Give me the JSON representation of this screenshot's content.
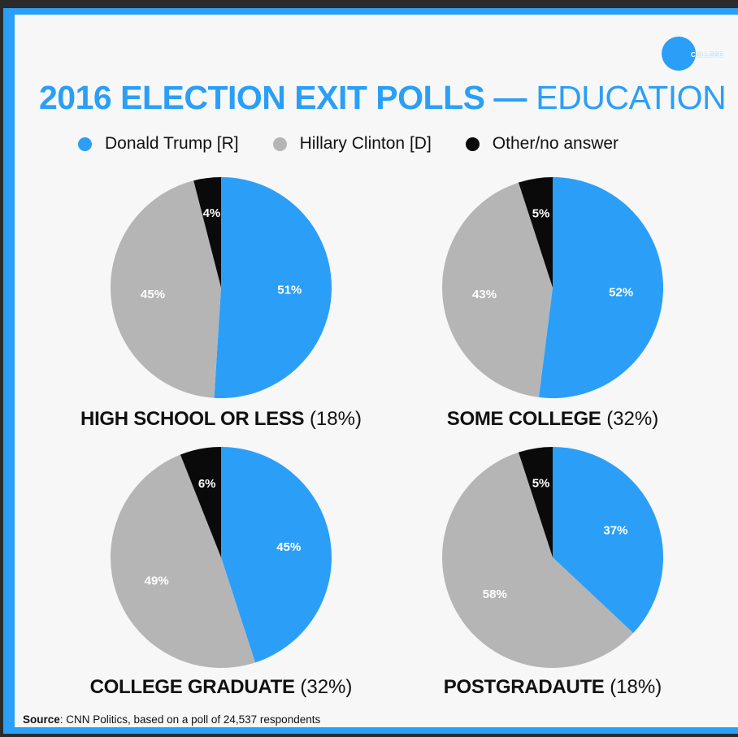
{
  "logo": {
    "text": "COLLEGE",
    "color": "#2b9ff7"
  },
  "header": {
    "title_main": "2016 ELECTION EXIT POLLS —",
    "title_sub": "EDUCATION"
  },
  "legend": [
    {
      "label": "Donald Trump  [R]",
      "color": "#2b9ff7"
    },
    {
      "label": "Hillary Clinton [D]",
      "color": "#b5b5b5"
    },
    {
      "label": "Other/no answer",
      "color": "#0a0a0a"
    }
  ],
  "footer": {
    "source_label": "Source",
    "source_text": ": CNN Politics, based on a poll of 24,537 respondents"
  },
  "chart_data": [
    {
      "type": "pie",
      "label": "HIGH SCHOOL OR LESS",
      "share": "(18%)",
      "slices": [
        {
          "name": "Donald Trump [R]",
          "value": 51,
          "label": "51%",
          "color": "#2b9ff7"
        },
        {
          "name": "Hillary Clinton [D]",
          "value": 45,
          "label": "45%",
          "color": "#b5b5b5"
        },
        {
          "name": "Other/no answer",
          "value": 4,
          "label": "4%",
          "color": "#0a0a0a"
        }
      ]
    },
    {
      "type": "pie",
      "label": "SOME COLLEGE",
      "share": "(32%)",
      "slices": [
        {
          "name": "Donald Trump [R]",
          "value": 52,
          "label": "52%",
          "color": "#2b9ff7"
        },
        {
          "name": "Hillary Clinton [D]",
          "value": 43,
          "label": "43%",
          "color": "#b5b5b5"
        },
        {
          "name": "Other/no answer",
          "value": 5,
          "label": "5%",
          "color": "#0a0a0a"
        }
      ]
    },
    {
      "type": "pie",
      "label": "COLLEGE GRADUATE",
      "share": "(32%)",
      "slices": [
        {
          "name": "Donald Trump [R]",
          "value": 45,
          "label": "45%",
          "color": "#2b9ff7"
        },
        {
          "name": "Hillary Clinton [D]",
          "value": 49,
          "label": "49%",
          "color": "#b5b5b5"
        },
        {
          "name": "Other/no answer",
          "value": 6,
          "label": "6%",
          "color": "#0a0a0a"
        }
      ]
    },
    {
      "type": "pie",
      "label": "POSTGRADAUTE",
      "share": "(18%)",
      "slices": [
        {
          "name": "Donald Trump [R]",
          "value": 37,
          "label": "37%",
          "color": "#2b9ff7"
        },
        {
          "name": "Hillary Clinton [D]",
          "value": 58,
          "label": "58%",
          "color": "#b5b5b5"
        },
        {
          "name": "Other/no answer",
          "value": 5,
          "label": "5%",
          "color": "#0a0a0a"
        }
      ]
    }
  ]
}
